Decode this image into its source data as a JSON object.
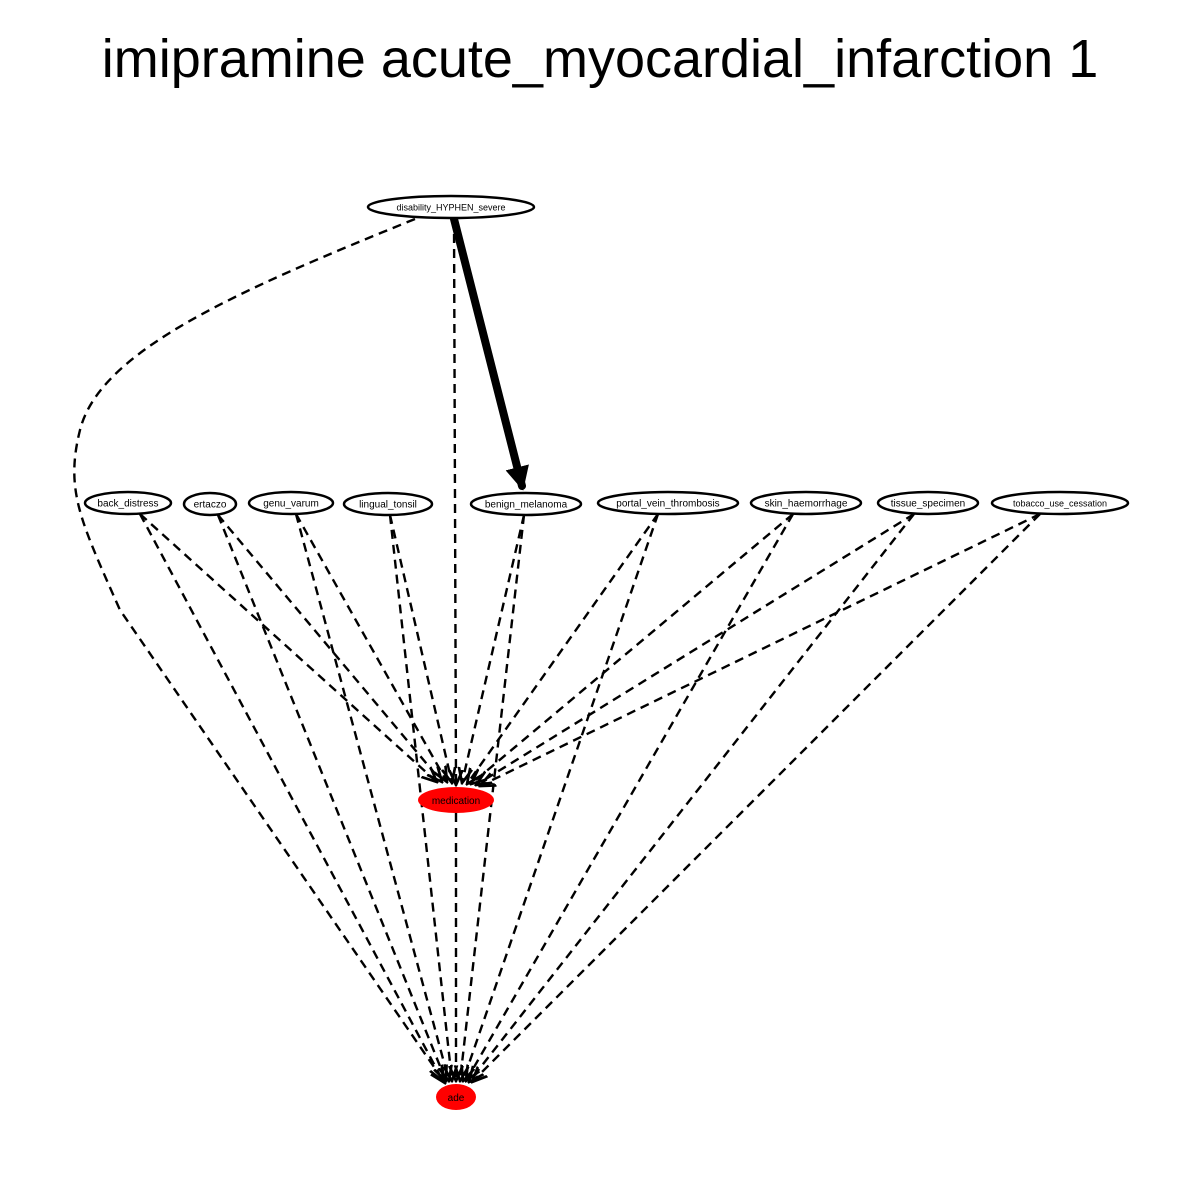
{
  "title": "imipramine acute_myocardial_infarction 1",
  "colors": {
    "background": "#ffffff",
    "node_fill": "#ffffff",
    "node_stroke": "#000000",
    "target_fill": "#ff0000",
    "edge": "#000000"
  },
  "nodes": {
    "disability": {
      "label": "disability_HYPHEN_severe"
    },
    "back_distress": {
      "label": "back_distress"
    },
    "ertaczo": {
      "label": "ertaczo"
    },
    "genu_varum": {
      "label": "genu_varum"
    },
    "lingual_tonsil": {
      "label": "lingual_tonsil"
    },
    "benign_melanoma": {
      "label": "benign_melanoma"
    },
    "portal_vein_thrombosis": {
      "label": "portal_vein_thrombosis"
    },
    "skin_haemorrhage": {
      "label": "skin_haemorrhage"
    },
    "tissue_specimen": {
      "label": "tissue_specimen"
    },
    "tobacco_use_cessation": {
      "label": "tobacco_use_cessation"
    },
    "medication": {
      "label": "medication"
    },
    "ade": {
      "label": "ade"
    }
  },
  "edges": [
    {
      "from": "disability",
      "to": "benign_melanoma",
      "style": "solid-bold"
    },
    {
      "from": "disability",
      "to": "medication",
      "style": "dashed"
    },
    {
      "from": "disability",
      "to": "ade",
      "style": "dashed"
    },
    {
      "from": "back_distress",
      "to": "medication",
      "style": "dashed"
    },
    {
      "from": "back_distress",
      "to": "ade",
      "style": "dashed"
    },
    {
      "from": "ertaczo",
      "to": "medication",
      "style": "dashed"
    },
    {
      "from": "ertaczo",
      "to": "ade",
      "style": "dashed"
    },
    {
      "from": "genu_varum",
      "to": "medication",
      "style": "dashed"
    },
    {
      "from": "genu_varum",
      "to": "ade",
      "style": "dashed"
    },
    {
      "from": "lingual_tonsil",
      "to": "medication",
      "style": "dashed"
    },
    {
      "from": "lingual_tonsil",
      "to": "ade",
      "style": "dashed"
    },
    {
      "from": "benign_melanoma",
      "to": "medication",
      "style": "dashed"
    },
    {
      "from": "benign_melanoma",
      "to": "ade",
      "style": "dashed"
    },
    {
      "from": "portal_vein_thrombosis",
      "to": "medication",
      "style": "dashed"
    },
    {
      "from": "portal_vein_thrombosis",
      "to": "ade",
      "style": "dashed"
    },
    {
      "from": "skin_haemorrhage",
      "to": "medication",
      "style": "dashed"
    },
    {
      "from": "skin_haemorrhage",
      "to": "ade",
      "style": "dashed"
    },
    {
      "from": "tissue_specimen",
      "to": "medication",
      "style": "dashed"
    },
    {
      "from": "tissue_specimen",
      "to": "ade",
      "style": "dashed"
    },
    {
      "from": "tobacco_use_cessation",
      "to": "medication",
      "style": "dashed"
    },
    {
      "from": "tobacco_use_cessation",
      "to": "ade",
      "style": "dashed"
    },
    {
      "from": "medication",
      "to": "ade",
      "style": "dashed"
    }
  ]
}
